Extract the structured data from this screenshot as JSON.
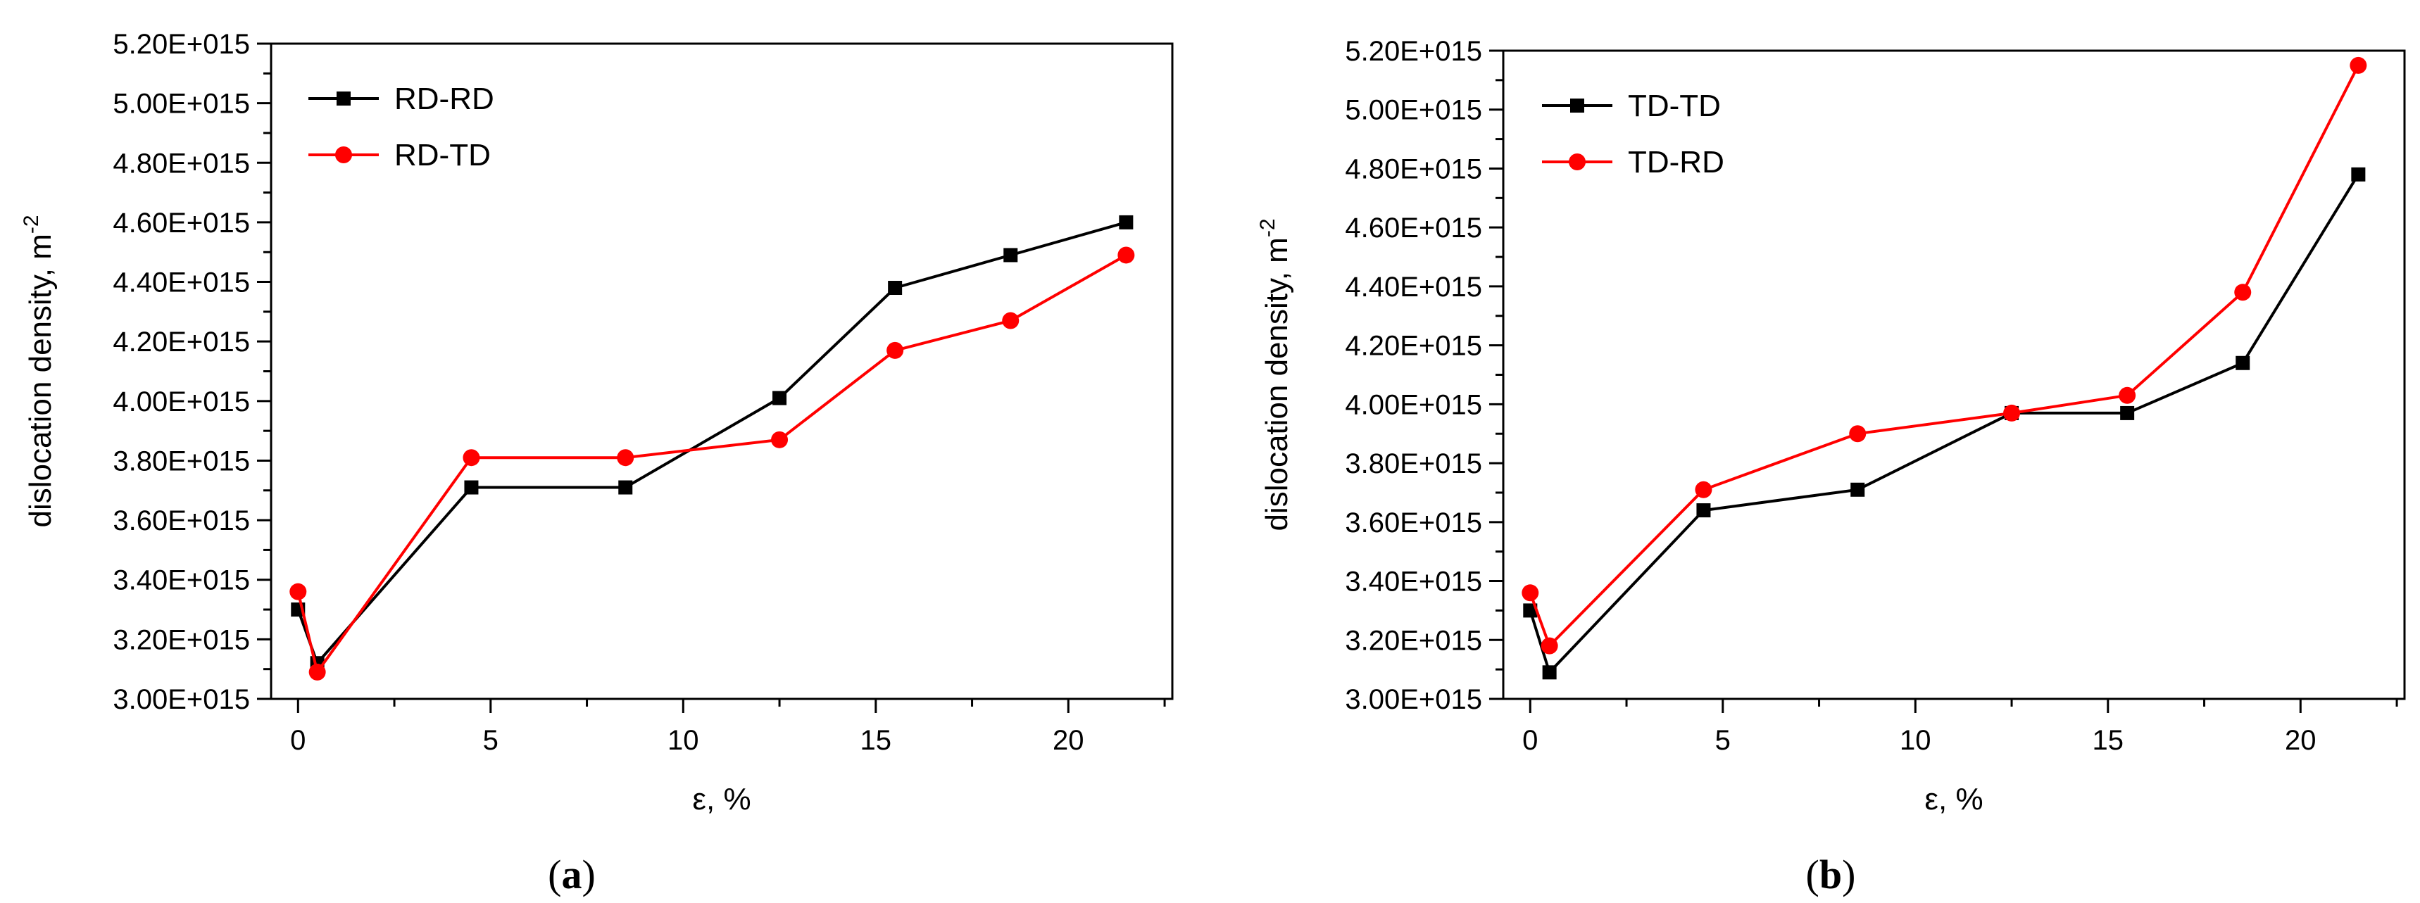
{
  "chart_data": [
    {
      "type": "line",
      "panel_label": "a",
      "xlabel": "ε, %",
      "ylabel_text": "dislocation density, m",
      "ylabel_superscript": "-2",
      "xlim": [
        -0.7,
        22.7
      ],
      "ylim": [
        3000000000000000.0,
        5200000000000000.0
      ],
      "x_ticks": [
        0,
        5,
        10,
        15,
        20
      ],
      "x_tick_labels": [
        "0",
        "5",
        "10",
        "15",
        "20"
      ],
      "y_ticks": [
        3000000000000000.0,
        3200000000000000.0,
        3400000000000000.0,
        3600000000000000.0,
        3800000000000000.0,
        4000000000000000.0,
        4200000000000000.0,
        4400000000000000.0,
        4600000000000000.0,
        4800000000000000.0,
        5000000000000000.0,
        5200000000000000.0
      ],
      "y_tick_labels": [
        "3.00E+015",
        "3.20E+015",
        "3.40E+015",
        "3.60E+015",
        "3.80E+015",
        "4.00E+015",
        "4.20E+015",
        "4.40E+015",
        "4.60E+015",
        "4.80E+015",
        "5.00E+015",
        "5.20E+015"
      ],
      "grid": false,
      "legend_position": "top-left",
      "series": [
        {
          "name": "RD-RD",
          "color": "#000000",
          "marker": "square",
          "x": [
            0,
            0.5,
            4.5,
            8.5,
            12.5,
            15.5,
            18.5,
            21.5
          ],
          "y": [
            3300000000000000.0,
            3120000000000000.0,
            3710000000000000.0,
            3710000000000000.0,
            4010000000000000.0,
            4380000000000000.0,
            4490000000000000.0,
            4600000000000000.0
          ]
        },
        {
          "name": "RD-TD",
          "color": "#ff0000",
          "marker": "circle",
          "x": [
            0,
            0.5,
            4.5,
            8.5,
            12.5,
            15.5,
            18.5,
            21.5
          ],
          "y": [
            3360000000000000.0,
            3090000000000000.0,
            3810000000000000.0,
            3810000000000000.0,
            3870000000000000.0,
            4170000000000000.0,
            4270000000000000.0,
            4490000000000000.0
          ]
        }
      ]
    },
    {
      "type": "line",
      "panel_label": "b",
      "xlabel": "ε, %",
      "ylabel_text": "dislocation density, m",
      "ylabel_superscript": "-2",
      "xlim": [
        -0.7,
        22.7
      ],
      "ylim": [
        3000000000000000.0,
        5200000000000000.0
      ],
      "x_ticks": [
        0,
        5,
        10,
        15,
        20
      ],
      "x_tick_labels": [
        "0",
        "5",
        "10",
        "15",
        "20"
      ],
      "y_ticks": [
        3000000000000000.0,
        3200000000000000.0,
        3400000000000000.0,
        3600000000000000.0,
        3800000000000000.0,
        4000000000000000.0,
        4200000000000000.0,
        4400000000000000.0,
        4600000000000000.0,
        4800000000000000.0,
        5000000000000000.0,
        5200000000000000.0
      ],
      "y_tick_labels": [
        "3.00E+015",
        "3.20E+015",
        "3.40E+015",
        "3.60E+015",
        "3.80E+015",
        "4.00E+015",
        "4.20E+015",
        "4.40E+015",
        "4.60E+015",
        "4.80E+015",
        "5.00E+015",
        "5.20E+015"
      ],
      "grid": false,
      "legend_position": "top-left",
      "series": [
        {
          "name": "TD-TD",
          "color": "#000000",
          "marker": "square",
          "x": [
            0,
            0.5,
            4.5,
            8.5,
            12.5,
            15.5,
            18.5,
            21.5
          ],
          "y": [
            3300000000000000.0,
            3090000000000000.0,
            3640000000000000.0,
            3710000000000000.0,
            3970000000000000.0,
            3970000000000000.0,
            4140000000000000.0,
            4780000000000000.0
          ]
        },
        {
          "name": "TD-RD",
          "color": "#ff0000",
          "marker": "circle",
          "x": [
            0,
            0.5,
            4.5,
            8.5,
            12.5,
            15.5,
            18.5,
            21.5
          ],
          "y": [
            3360000000000000.0,
            3180000000000000.0,
            3710000000000000.0,
            3900000000000000.0,
            3970000000000000.0,
            4030000000000000.0,
            4380000000000000.0,
            5150000000000000.0
          ]
        }
      ]
    }
  ]
}
